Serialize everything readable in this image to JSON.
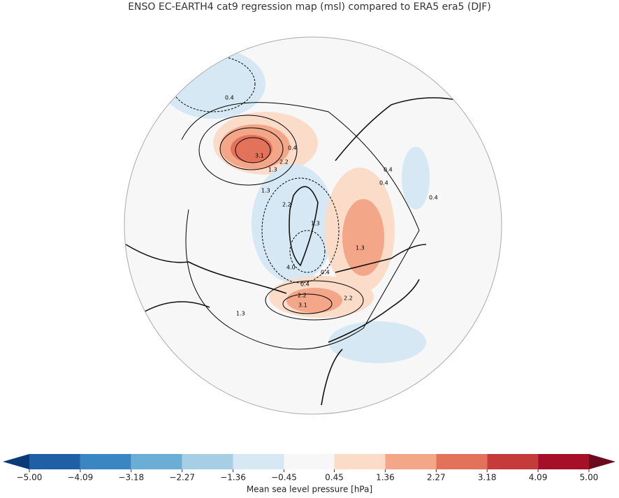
{
  "title": "ENSO EC-EARTH4 cat9 regression map (msl) compared to ERA5 era5 (DJF)",
  "colorbar": {
    "label": "Mean sea level pressure [hPa]",
    "ticks": [
      {
        "value": -5,
        "label": "−5.00"
      },
      {
        "value": -4.09,
        "label": "−4.09"
      },
      {
        "value": -3.18,
        "label": "−3.18"
      },
      {
        "value": -2.27,
        "label": "−2.27"
      },
      {
        "value": -1.36,
        "label": "−1.36"
      },
      {
        "value": -0.45,
        "label": "−0.45"
      },
      {
        "value": 0.45,
        "label": "0.45"
      },
      {
        "value": 1.36,
        "label": "1.36"
      },
      {
        "value": 2.27,
        "label": "2.27"
      },
      {
        "value": 3.18,
        "label": "3.18"
      },
      {
        "value": 4.09,
        "label": "4.09"
      },
      {
        "value": 5,
        "label": "5.00"
      }
    ],
    "colors": [
      "#1f5fa6",
      "#3a86c2",
      "#6aaed6",
      "#a6cfe6",
      "#d6e8f3",
      "#f7f7f7",
      "#fbdcc9",
      "#f4a688",
      "#e2735a",
      "#c53a3a",
      "#a50f27"
    ],
    "under_color": "#0b3a78",
    "over_color": "#6b0a1e"
  },
  "contour_labels": [
    0.4,
    3.1,
    0.4,
    1.3,
    2.2,
    1.3,
    2.2,
    0.4,
    0.4,
    0.4,
    1.3,
    0.4,
    0.4,
    2.2,
    3.1,
    2.2,
    1.3,
    {
      "value": 4,
      "label": "4.0"
    },
    1.3
  ]
}
